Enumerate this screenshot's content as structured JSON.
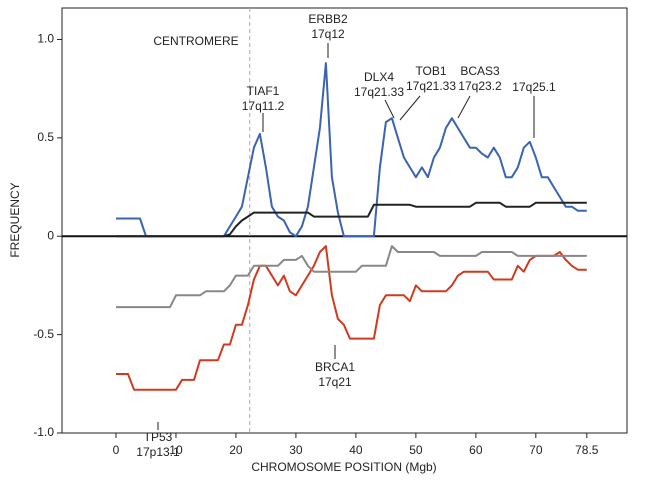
{
  "chart_data": {
    "type": "line",
    "ylabel": "FREQUENCY",
    "xlabel": "CHROMOSOME POSITION (Mgb)",
    "centromere": 22.3,
    "centromere_label": "CENTROMERE",
    "xlim": [
      -9,
      85.2
    ],
    "ylim": [
      -1.0,
      1.16
    ],
    "xticks": [
      0,
      10,
      20,
      30,
      40,
      50,
      60,
      70,
      78.5
    ],
    "yticks": [
      {
        "value": -1.0,
        "label": "-1.0"
      },
      -0.5,
      0,
      0.5,
      {
        "value": 1.0,
        "label": "1.0"
      }
    ],
    "x": [
      0,
      1,
      2,
      3,
      4,
      5,
      6,
      7,
      8,
      9,
      10,
      11,
      12,
      13,
      14,
      15,
      16,
      17,
      18,
      19,
      20,
      21,
      22,
      23,
      24,
      25,
      26,
      27,
      28,
      29,
      30,
      31,
      32,
      33,
      34,
      35,
      36,
      37,
      38,
      39,
      40,
      41,
      42,
      43,
      44,
      45,
      46,
      47,
      48,
      49,
      50,
      51,
      52,
      53,
      54,
      55,
      56,
      57,
      58,
      59,
      60,
      61,
      62,
      63,
      64,
      65,
      66,
      67,
      68,
      69,
      70,
      71,
      72,
      73,
      74,
      75,
      76,
      77,
      78,
      78.5
    ],
    "series": [
      {
        "color": "#3a63b0",
        "values": [
          0.09,
          0.09,
          0.09,
          0.09,
          0.09,
          0,
          0,
          0,
          0,
          0,
          0,
          0,
          0,
          0,
          0,
          0,
          0,
          0,
          0,
          0.05,
          0.1,
          0.15,
          0.3,
          0.45,
          0.52,
          0.35,
          0.15,
          0.1,
          0.08,
          0.02,
          0,
          0.05,
          0.15,
          0.35,
          0.55,
          0.88,
          0.3,
          0.12,
          0,
          0,
          0,
          0,
          0,
          0,
          0.35,
          0.58,
          0.6,
          0.5,
          0.4,
          0.35,
          0.3,
          0.35,
          0.3,
          0.4,
          0.45,
          0.55,
          0.6,
          0.55,
          0.5,
          0.45,
          0.45,
          0.42,
          0.4,
          0.45,
          0.4,
          0.3,
          0.3,
          0.35,
          0.45,
          0.48,
          0.4,
          0.3,
          0.3,
          0.25,
          0.2,
          0.15,
          0.15,
          0.13,
          0.13,
          0.13
        ]
      },
      {
        "color": "#222222",
        "values": [
          0,
          0,
          0,
          0,
          0,
          0,
          0,
          0,
          0,
          0,
          0,
          0,
          0,
          0,
          0,
          0,
          0,
          0,
          0,
          0.01,
          0.05,
          0.08,
          0.1,
          0.12,
          0.12,
          0.12,
          0.12,
          0.12,
          0.12,
          0.12,
          0.12,
          0.12,
          0.12,
          0.1,
          0.1,
          0.1,
          0.1,
          0.1,
          0.1,
          0.1,
          0.1,
          0.1,
          0.1,
          0.16,
          0.16,
          0.16,
          0.16,
          0.16,
          0.16,
          0.16,
          0.15,
          0.15,
          0.15,
          0.15,
          0.15,
          0.15,
          0.15,
          0.15,
          0.15,
          0.15,
          0.17,
          0.17,
          0.17,
          0.17,
          0.17,
          0.15,
          0.15,
          0.15,
          0.15,
          0.15,
          0.17,
          0.17,
          0.17,
          0.17,
          0.17,
          0.17,
          0.17,
          0.17,
          0.17,
          0.17
        ]
      },
      {
        "color": "#d13a1e",
        "values": [
          -0.7,
          -0.7,
          -0.7,
          -0.78,
          -0.78,
          -0.78,
          -0.78,
          -0.78,
          -0.78,
          -0.78,
          -0.78,
          -0.73,
          -0.73,
          -0.73,
          -0.63,
          -0.63,
          -0.63,
          -0.63,
          -0.55,
          -0.55,
          -0.45,
          -0.45,
          -0.35,
          -0.22,
          -0.15,
          -0.15,
          -0.2,
          -0.25,
          -0.2,
          -0.28,
          -0.3,
          -0.25,
          -0.2,
          -0.15,
          -0.08,
          -0.05,
          -0.3,
          -0.42,
          -0.45,
          -0.52,
          -0.52,
          -0.52,
          -0.52,
          -0.52,
          -0.35,
          -0.3,
          -0.3,
          -0.3,
          -0.3,
          -0.33,
          -0.25,
          -0.28,
          -0.28,
          -0.28,
          -0.28,
          -0.28,
          -0.25,
          -0.2,
          -0.18,
          -0.18,
          -0.18,
          -0.18,
          -0.18,
          -0.22,
          -0.22,
          -0.22,
          -0.22,
          -0.15,
          -0.18,
          -0.12,
          -0.1,
          -0.1,
          -0.1,
          -0.1,
          -0.08,
          -0.12,
          -0.15,
          -0.17,
          -0.17,
          -0.17
        ]
      },
      {
        "color": "#888888",
        "values": [
          -0.36,
          -0.36,
          -0.36,
          -0.36,
          -0.36,
          -0.36,
          -0.36,
          -0.36,
          -0.36,
          -0.36,
          -0.3,
          -0.3,
          -0.3,
          -0.3,
          -0.3,
          -0.28,
          -0.28,
          -0.28,
          -0.28,
          -0.25,
          -0.2,
          -0.2,
          -0.2,
          -0.15,
          -0.15,
          -0.15,
          -0.15,
          -0.15,
          -0.12,
          -0.12,
          -0.12,
          -0.1,
          -0.15,
          -0.18,
          -0.18,
          -0.18,
          -0.18,
          -0.18,
          -0.18,
          -0.18,
          -0.18,
          -0.15,
          -0.15,
          -0.15,
          -0.15,
          -0.15,
          -0.05,
          -0.08,
          -0.08,
          -0.08,
          -0.08,
          -0.08,
          -0.08,
          -0.08,
          -0.1,
          -0.1,
          -0.1,
          -0.1,
          -0.1,
          -0.1,
          -0.1,
          -0.08,
          -0.08,
          -0.08,
          -0.08,
          -0.08,
          -0.08,
          -0.1,
          -0.1,
          -0.1,
          -0.1,
          -0.1,
          -0.1,
          -0.1,
          -0.1,
          -0.1,
          -0.1,
          -0.1,
          -0.1,
          -0.1
        ]
      }
    ],
    "annotations": [
      {
        "gene": "TIAF1",
        "band": "17q11.2"
      },
      {
        "gene": "ERBB2",
        "band": "17q12"
      },
      {
        "gene": "DLX4",
        "band": "17q21.33"
      },
      {
        "gene": "TOB1",
        "band": "17q21.33"
      },
      {
        "gene": "BCAS3",
        "band": "17q23.2"
      },
      {
        "band": "17q25.1"
      },
      {
        "gene": "BRCA1",
        "band": "17q21"
      },
      {
        "gene": "TP53",
        "band": "17p13.1"
      }
    ]
  }
}
